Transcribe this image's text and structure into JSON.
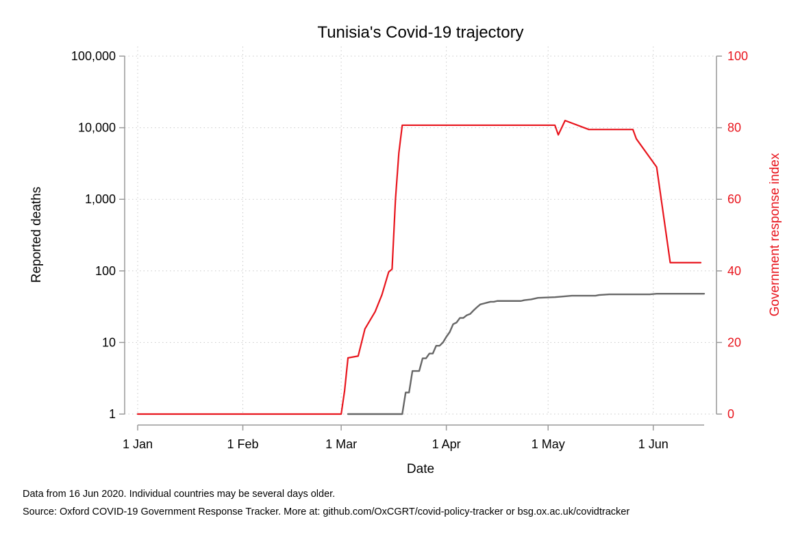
{
  "chart_data": {
    "type": "line",
    "title": "Tunisia's Covid-19 trajectory",
    "xlabel": "Date",
    "ylabel_left": "Reported deaths",
    "ylabel_right": "Government response index",
    "x_ticks": [
      "1 Jan",
      "1 Feb",
      "1 Mar",
      "1 Apr",
      "1 May",
      "1 Jun"
    ],
    "x_tick_dates": [
      "2020-01-01",
      "2020-02-01",
      "2020-03-01",
      "2020-04-01",
      "2020-05-01",
      "2020-06-01"
    ],
    "xlim": [
      "2020-01-01",
      "2020-06-16"
    ],
    "y_left": {
      "scale": "log",
      "lim": [
        1,
        100000
      ],
      "ticks": [
        1,
        10,
        100,
        1000,
        10000,
        100000
      ],
      "tick_labels": [
        "1",
        "10",
        "100",
        "1,000",
        "10,000",
        "100,000"
      ]
    },
    "y_right": {
      "scale": "linear",
      "lim": [
        0,
        100
      ],
      "ticks": [
        0,
        20,
        40,
        60,
        80,
        100
      ],
      "tick_labels": [
        "0",
        "20",
        "40",
        "60",
        "80",
        "100"
      ]
    },
    "grid": true,
    "series": [
      {
        "axis": "left",
        "color": "#666666",
        "points": [
          [
            "2020-03-03",
            1
          ],
          [
            "2020-03-19",
            1
          ],
          [
            "2020-03-20",
            2
          ],
          [
            "2020-03-21",
            2
          ],
          [
            "2020-03-22",
            4
          ],
          [
            "2020-03-24",
            4
          ],
          [
            "2020-03-25",
            6
          ],
          [
            "2020-03-26",
            6
          ],
          [
            "2020-03-27",
            7
          ],
          [
            "2020-03-28",
            7
          ],
          [
            "2020-03-29",
            9
          ],
          [
            "2020-03-30",
            9
          ],
          [
            "2020-03-31",
            10
          ],
          [
            "2020-04-01",
            12
          ],
          [
            "2020-04-02",
            14
          ],
          [
            "2020-04-03",
            18
          ],
          [
            "2020-04-04",
            19
          ],
          [
            "2020-04-05",
            22
          ],
          [
            "2020-04-06",
            22
          ],
          [
            "2020-04-07",
            24
          ],
          [
            "2020-04-08",
            25
          ],
          [
            "2020-04-09",
            28
          ],
          [
            "2020-04-10",
            31
          ],
          [
            "2020-04-11",
            34
          ],
          [
            "2020-04-12",
            35
          ],
          [
            "2020-04-13",
            36
          ],
          [
            "2020-04-14",
            37
          ],
          [
            "2020-04-15",
            37
          ],
          [
            "2020-04-16",
            38
          ],
          [
            "2020-04-23",
            38
          ],
          [
            "2020-04-24",
            39
          ],
          [
            "2020-04-26",
            40
          ],
          [
            "2020-04-28",
            42
          ],
          [
            "2020-05-03",
            43
          ],
          [
            "2020-05-08",
            45
          ],
          [
            "2020-05-15",
            45
          ],
          [
            "2020-05-16",
            46
          ],
          [
            "2020-05-19",
            47
          ],
          [
            "2020-05-31",
            47
          ],
          [
            "2020-06-02",
            48
          ],
          [
            "2020-06-16",
            48
          ]
        ]
      },
      {
        "axis": "right",
        "color": "#e8141c",
        "points": [
          [
            "2020-01-01",
            0
          ],
          [
            "2020-03-01",
            0
          ],
          [
            "2020-03-02",
            6.5
          ],
          [
            "2020-03-03",
            15.7
          ],
          [
            "2020-03-06",
            16.2
          ],
          [
            "2020-03-08",
            23.8
          ],
          [
            "2020-03-11",
            28.6
          ],
          [
            "2020-03-13",
            33.3
          ],
          [
            "2020-03-15",
            39.7
          ],
          [
            "2020-03-16",
            40.5
          ],
          [
            "2020-03-17",
            60.0
          ],
          [
            "2020-03-18",
            73.0
          ],
          [
            "2020-03-19",
            80.7
          ],
          [
            "2020-05-03",
            80.7
          ],
          [
            "2020-05-04",
            78.0
          ],
          [
            "2020-05-06",
            82.0
          ],
          [
            "2020-05-13",
            79.5
          ],
          [
            "2020-05-26",
            79.5
          ],
          [
            "2020-05-27",
            76.9
          ],
          [
            "2020-06-02",
            69.0
          ],
          [
            "2020-06-06",
            42.3
          ],
          [
            "2020-06-15",
            42.3
          ]
        ]
      }
    ],
    "notes": [
      "Data from 16 Jun 2020. Individual countries may be several days older.",
      "Source: Oxford COVID-19 Government Response Tracker. More at: github.com/OxCGRT/covid-policy-tracker or bsg.ox.ac.uk/covidtracker"
    ]
  }
}
